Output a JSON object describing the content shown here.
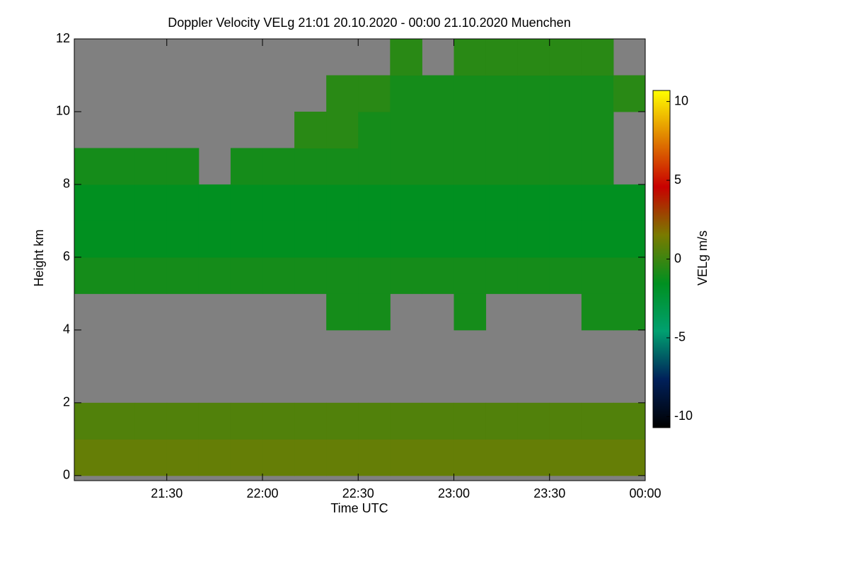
{
  "chart_data": {
    "type": "heatmap",
    "title": "Doppler Velocity VELg   21:01 20.10.2020 - 00:00 21.10.2020 Muenchen",
    "x_label": "Time UTC",
    "y_label": "Height km",
    "colorbar_label": "VELg m/s",
    "x": [
      1261,
      1270,
      1280,
      1290,
      1300,
      1310,
      1320,
      1330,
      1340,
      1350,
      1360,
      1370,
      1380,
      1390,
      1400,
      1410,
      1420,
      1430,
      1440
    ],
    "y": [
      0,
      1,
      2,
      3,
      4,
      5,
      6,
      7,
      8,
      9,
      10,
      11,
      12
    ],
    "values": [
      [
        1,
        1,
        1,
        1,
        1,
        1,
        1,
        1,
        1,
        1,
        1,
        1,
        1,
        1,
        1,
        1,
        1,
        1
      ],
      [
        0.5,
        0.5,
        0.5,
        0.5,
        0.5,
        0.5,
        0.5,
        0.5,
        0.5,
        0.5,
        0.5,
        0.5,
        0.5,
        0.5,
        0.5,
        0.5,
        0.5,
        0.5
      ],
      [
        null,
        null,
        null,
        null,
        null,
        null,
        null,
        null,
        null,
        null,
        null,
        null,
        null,
        null,
        null,
        null,
        null,
        null
      ],
      [
        null,
        null,
        null,
        null,
        null,
        null,
        null,
        null,
        null,
        null,
        null,
        null,
        null,
        null,
        null,
        null,
        null,
        null
      ],
      [
        null,
        null,
        null,
        null,
        null,
        null,
        null,
        null,
        -1,
        -1,
        null,
        null,
        -1,
        null,
        null,
        null,
        -1,
        -1
      ],
      [
        -1,
        -1,
        -1,
        -1,
        -1,
        -1,
        -1,
        -1,
        -1,
        -1,
        -1,
        -1,
        -1,
        -1,
        -1,
        -1,
        -1,
        -1
      ],
      [
        -1.5,
        -1.5,
        -1.5,
        -1.5,
        -1.5,
        -1.5,
        -1.5,
        -1.5,
        -1.5,
        -1.5,
        -1.5,
        -1.5,
        -1.5,
        -1.5,
        -1.5,
        -1.5,
        -1.5,
        -1.5
      ],
      [
        -1.5,
        -1.5,
        -1.5,
        -1.5,
        -1.5,
        -1.5,
        -1.5,
        -1.5,
        -1.5,
        -1.5,
        -1.5,
        -1.5,
        -1.5,
        -1.5,
        -1.5,
        -1.5,
        -1.5,
        -1.5
      ],
      [
        -1,
        -1,
        -1,
        -1,
        null,
        -1,
        -1,
        -1,
        -1,
        -1,
        -1,
        -1,
        -1,
        -1,
        -1,
        -1,
        -1,
        null
      ],
      [
        null,
        null,
        null,
        null,
        null,
        null,
        null,
        -0.5,
        -0.5,
        -1,
        -1,
        -1,
        -1,
        -1,
        -1,
        -1,
        -1,
        null
      ],
      [
        null,
        null,
        null,
        null,
        null,
        null,
        null,
        null,
        -0.5,
        -0.5,
        -1,
        -1,
        -1,
        -1,
        -1,
        -1,
        -1,
        -0.5
      ],
      [
        null,
        null,
        null,
        null,
        null,
        null,
        null,
        null,
        null,
        null,
        -0.5,
        null,
        -0.5,
        -0.5,
        -0.5,
        -0.5,
        -0.5,
        null
      ]
    ],
    "xlim": [
      1261,
      1440
    ],
    "xticks": [
      {
        "value": 1290,
        "label": "21:30"
      },
      {
        "value": 1320,
        "label": "22:00"
      },
      {
        "value": 1350,
        "label": "22:30"
      },
      {
        "value": 1380,
        "label": "23:00"
      },
      {
        "value": 1410,
        "label": "23:30"
      },
      {
        "value": 1440,
        "label": "00:00"
      }
    ],
    "ylim": [
      -0.14,
      12
    ],
    "yticks": [
      0,
      2,
      4,
      6,
      8,
      10,
      12
    ],
    "zlim": [
      -10.7,
      10.7
    ],
    "zticks": [
      -10,
      -5,
      0,
      5,
      10
    ],
    "colors": [
      "#000000",
      "#00205a",
      "#00a070",
      "#009020",
      "#7a7a00",
      "#c80000",
      "#e08000",
      "#ffff00"
    ],
    "null_color": "#808080"
  }
}
